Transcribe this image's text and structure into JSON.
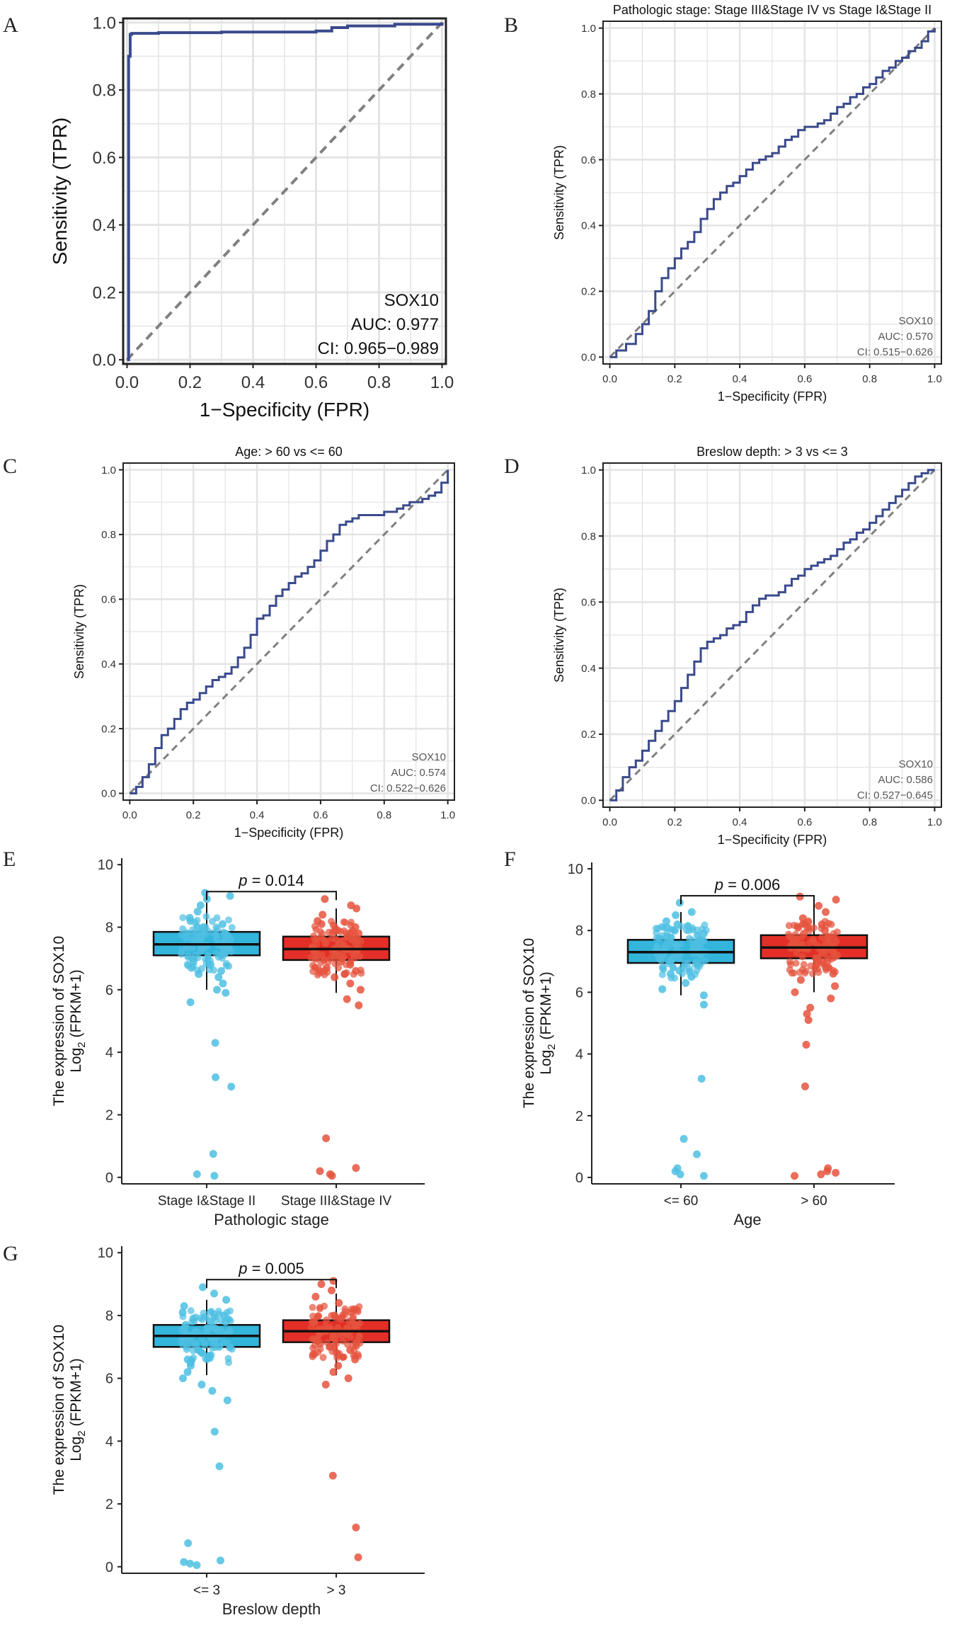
{
  "figure": {
    "title": "SOX10 ROC and expression panels"
  },
  "colors": {
    "roc_line": "#3a4a8c",
    "diagonal": "#808080",
    "grid": "#e4e4e4",
    "blue_box": "#33b5dc",
    "blue_point": "#4dbfe2",
    "red_box": "#e32f27",
    "red_point": "#e5533d"
  },
  "chart_data": [
    {
      "panel": "A",
      "type": "line",
      "title": "",
      "xlabel": "1−Specificity (FPR)",
      "ylabel": "Sensitivity (TPR)",
      "xlim": [
        0,
        1
      ],
      "ylim": [
        0,
        1
      ],
      "xticks": [
        "0.0",
        "0.2",
        "0.4",
        "0.6",
        "0.8",
        "1.0"
      ],
      "yticks": [
        "0.0",
        "0.2",
        "0.4",
        "0.6",
        "0.8",
        "1.0"
      ],
      "grid": true,
      "annotation": [
        "SOX10",
        "AUC: 0.977",
        "CI: 0.965−0.989"
      ],
      "series": [
        {
          "name": "SOX10",
          "x": [
            0,
            0.005,
            0.01,
            0.015,
            0.1,
            0.3,
            0.6,
            0.65,
            0.7,
            0.85,
            1.0
          ],
          "y": [
            0,
            0.9,
            0.965,
            0.968,
            0.97,
            0.972,
            0.975,
            0.985,
            0.99,
            0.995,
            1.0
          ]
        }
      ]
    },
    {
      "panel": "B",
      "type": "line",
      "title": "Pathologic stage: Stage III&Stage IV vs Stage I&Stage II",
      "xlabel": "1−Specificity (FPR)",
      "ylabel": "Sensitivity (TPR)",
      "xlim": [
        0,
        1
      ],
      "ylim": [
        0,
        1
      ],
      "xticks": [
        "0.0",
        "0.2",
        "0.4",
        "0.6",
        "0.8",
        "1.0"
      ],
      "yticks": [
        "0.0",
        "0.2",
        "0.4",
        "0.6",
        "0.8",
        "1.0"
      ],
      "grid": true,
      "annotation": [
        "SOX10",
        "AUC: 0.570",
        "CI: 0.515−0.626"
      ],
      "series": [
        {
          "name": "SOX10",
          "x": [
            0,
            0.02,
            0.05,
            0.08,
            0.1,
            0.12,
            0.14,
            0.16,
            0.18,
            0.2,
            0.22,
            0.24,
            0.26,
            0.28,
            0.3,
            0.32,
            0.34,
            0.36,
            0.38,
            0.4,
            0.42,
            0.44,
            0.46,
            0.48,
            0.5,
            0.52,
            0.54,
            0.56,
            0.58,
            0.6,
            0.62,
            0.64,
            0.66,
            0.68,
            0.7,
            0.72,
            0.74,
            0.76,
            0.78,
            0.8,
            0.82,
            0.84,
            0.86,
            0.88,
            0.9,
            0.92,
            0.94,
            0.96,
            0.98,
            1.0
          ],
          "y": [
            0,
            0.02,
            0.04,
            0.07,
            0.1,
            0.14,
            0.2,
            0.24,
            0.27,
            0.3,
            0.33,
            0.35,
            0.38,
            0.42,
            0.45,
            0.48,
            0.5,
            0.52,
            0.53,
            0.55,
            0.57,
            0.59,
            0.6,
            0.61,
            0.62,
            0.64,
            0.66,
            0.67,
            0.69,
            0.7,
            0.7,
            0.71,
            0.72,
            0.74,
            0.76,
            0.77,
            0.79,
            0.8,
            0.82,
            0.83,
            0.85,
            0.87,
            0.88,
            0.9,
            0.91,
            0.93,
            0.94,
            0.96,
            0.99,
            1.0
          ]
        }
      ]
    },
    {
      "panel": "C",
      "type": "line",
      "title": "Age: > 60 vs <= 60",
      "xlabel": "1−Specificity (FPR)",
      "ylabel": "Sensitivity (TPR)",
      "xlim": [
        0,
        1
      ],
      "ylim": [
        0,
        1
      ],
      "xticks": [
        "0.0",
        "0.2",
        "0.4",
        "0.6",
        "0.8",
        "1.0"
      ],
      "yticks": [
        "0.0",
        "0.2",
        "0.4",
        "0.6",
        "0.8",
        "1.0"
      ],
      "grid": true,
      "annotation": [
        "SOX10",
        "AUC: 0.574",
        "CI: 0.522−0.626"
      ],
      "series": [
        {
          "name": "SOX10",
          "x": [
            0,
            0.02,
            0.04,
            0.06,
            0.08,
            0.1,
            0.12,
            0.14,
            0.16,
            0.18,
            0.2,
            0.22,
            0.24,
            0.26,
            0.28,
            0.3,
            0.32,
            0.34,
            0.36,
            0.38,
            0.4,
            0.42,
            0.44,
            0.46,
            0.48,
            0.5,
            0.52,
            0.54,
            0.56,
            0.58,
            0.6,
            0.62,
            0.64,
            0.66,
            0.68,
            0.7,
            0.72,
            0.74,
            0.76,
            0.78,
            0.8,
            0.82,
            0.84,
            0.86,
            0.88,
            0.9,
            0.92,
            0.94,
            0.96,
            0.98,
            1.0
          ],
          "y": [
            0,
            0.02,
            0.05,
            0.09,
            0.14,
            0.18,
            0.2,
            0.23,
            0.26,
            0.28,
            0.29,
            0.31,
            0.33,
            0.35,
            0.36,
            0.37,
            0.39,
            0.42,
            0.45,
            0.49,
            0.54,
            0.55,
            0.58,
            0.61,
            0.63,
            0.65,
            0.67,
            0.68,
            0.7,
            0.72,
            0.75,
            0.78,
            0.8,
            0.83,
            0.84,
            0.85,
            0.86,
            0.86,
            0.86,
            0.86,
            0.87,
            0.87,
            0.88,
            0.89,
            0.9,
            0.9,
            0.91,
            0.92,
            0.93,
            0.96,
            1.0
          ]
        }
      ]
    },
    {
      "panel": "D",
      "type": "line",
      "title": "Breslow depth: > 3 vs <= 3",
      "xlabel": "1−Specificity (FPR)",
      "ylabel": "Sensitivity (TPR)",
      "xlim": [
        0,
        1
      ],
      "ylim": [
        0,
        1
      ],
      "xticks": [
        "0.0",
        "0.2",
        "0.4",
        "0.6",
        "0.8",
        "1.0"
      ],
      "yticks": [
        "0.0",
        "0.2",
        "0.4",
        "0.6",
        "0.8",
        "1.0"
      ],
      "grid": true,
      "annotation": [
        "SOX10",
        "AUC: 0.586",
        "CI: 0.527−0.645"
      ],
      "series": [
        {
          "name": "SOX10",
          "x": [
            0,
            0.02,
            0.04,
            0.06,
            0.08,
            0.1,
            0.12,
            0.14,
            0.16,
            0.18,
            0.2,
            0.22,
            0.24,
            0.26,
            0.28,
            0.3,
            0.32,
            0.34,
            0.36,
            0.38,
            0.4,
            0.42,
            0.44,
            0.46,
            0.48,
            0.5,
            0.52,
            0.54,
            0.56,
            0.58,
            0.6,
            0.62,
            0.64,
            0.66,
            0.68,
            0.7,
            0.72,
            0.74,
            0.76,
            0.78,
            0.8,
            0.82,
            0.84,
            0.86,
            0.88,
            0.9,
            0.92,
            0.94,
            0.96,
            0.98,
            1.0
          ],
          "y": [
            0,
            0.03,
            0.07,
            0.1,
            0.12,
            0.15,
            0.18,
            0.21,
            0.24,
            0.27,
            0.3,
            0.34,
            0.38,
            0.42,
            0.46,
            0.48,
            0.49,
            0.5,
            0.52,
            0.53,
            0.54,
            0.57,
            0.59,
            0.61,
            0.62,
            0.62,
            0.63,
            0.65,
            0.67,
            0.68,
            0.7,
            0.71,
            0.72,
            0.73,
            0.74,
            0.76,
            0.78,
            0.79,
            0.81,
            0.82,
            0.84,
            0.86,
            0.88,
            0.9,
            0.92,
            0.94,
            0.96,
            0.98,
            0.99,
            1.0,
            1.0
          ]
        }
      ]
    },
    {
      "panel": "E",
      "type": "box",
      "xlabel": "Pathologic stage",
      "ylabel_line1": "The expression of SOX10",
      "ylabel_line2": "Log",
      "ylabel_sub": "2",
      "ylabel_tail": " (FPKM+1)",
      "ylim": [
        0,
        10
      ],
      "yticks": [
        "0",
        "2",
        "4",
        "6",
        "8",
        "10"
      ],
      "pvalue_label": "p",
      "pvalue_text": " = 0.014",
      "groups": [
        {
          "name": "Stage I&Stage II",
          "color": "blue",
          "q1": 7.1,
          "median": 7.45,
          "q3": 7.85,
          "whisker_low": 6.0,
          "whisker_high": 8.8,
          "points": [
            0.05,
            0.1,
            0.75,
            2.9,
            3.2,
            4.3,
            5.6,
            5.9,
            6.0,
            6.2,
            6.4,
            6.5,
            6.6,
            6.7,
            6.8,
            6.9,
            7.0,
            7.1,
            7.2,
            7.3,
            7.35,
            7.4,
            7.45,
            7.5,
            7.55,
            7.6,
            7.7,
            7.8,
            7.9,
            8.0,
            8.1,
            8.2,
            8.3,
            8.5,
            8.7,
            8.9,
            9.0,
            9.1
          ]
        },
        {
          "name": "Stage III&Stage IV",
          "color": "red",
          "q1": 6.95,
          "median": 7.3,
          "q3": 7.7,
          "whisker_low": 5.9,
          "whisker_high": 8.6,
          "points": [
            0.05,
            0.1,
            0.2,
            0.3,
            1.25,
            5.5,
            5.7,
            6.0,
            6.2,
            6.4,
            6.5,
            6.6,
            6.7,
            6.8,
            6.9,
            7.0,
            7.1,
            7.2,
            7.25,
            7.3,
            7.35,
            7.4,
            7.5,
            7.6,
            7.7,
            7.8,
            7.9,
            8.0,
            8.1,
            8.2,
            8.4,
            8.6,
            8.7,
            8.9
          ]
        }
      ]
    },
    {
      "panel": "F",
      "type": "box",
      "xlabel": "Age",
      "ylabel_line1": "The expression of SOX10",
      "ylabel_line2": "Log",
      "ylabel_sub": "2",
      "ylabel_tail": " (FPKM+1)",
      "ylim": [
        0,
        10
      ],
      "yticks": [
        "0",
        "2",
        "4",
        "6",
        "8",
        "10"
      ],
      "pvalue_label": "p",
      "pvalue_text": " = 0.006",
      "groups": [
        {
          "name": "<= 60",
          "color": "blue",
          "q1": 6.95,
          "median": 7.3,
          "q3": 7.7,
          "whisker_low": 5.9,
          "whisker_high": 8.6,
          "points": [
            0.05,
            0.1,
            0.2,
            0.3,
            0.75,
            1.25,
            3.2,
            5.6,
            5.9,
            6.1,
            6.3,
            6.5,
            6.6,
            6.7,
            6.8,
            6.9,
            7.0,
            7.1,
            7.2,
            7.3,
            7.35,
            7.4,
            7.5,
            7.6,
            7.7,
            7.8,
            7.9,
            8.0,
            8.1,
            8.2,
            8.3,
            8.5,
            8.6,
            8.9
          ]
        },
        {
          "name": "> 60",
          "color": "red",
          "q1": 7.1,
          "median": 7.45,
          "q3": 7.85,
          "whisker_low": 6.0,
          "whisker_high": 8.9,
          "points": [
            0.05,
            0.1,
            0.15,
            0.2,
            0.3,
            2.95,
            4.3,
            5.1,
            5.3,
            5.5,
            5.8,
            6.0,
            6.2,
            6.4,
            6.6,
            6.8,
            6.9,
            7.0,
            7.1,
            7.2,
            7.3,
            7.4,
            7.45,
            7.5,
            7.6,
            7.7,
            7.8,
            7.9,
            8.0,
            8.1,
            8.2,
            8.4,
            8.6,
            8.8,
            9.0,
            9.1
          ]
        }
      ]
    },
    {
      "panel": "G",
      "type": "box",
      "xlabel": "Breslow depth",
      "ylabel_line1": "The expression of SOX10",
      "ylabel_line2": "Log",
      "ylabel_sub": "2",
      "ylabel_tail": " (FPKM+1)",
      "ylim": [
        0,
        10
      ],
      "yticks": [
        "0",
        "2",
        "4",
        "6",
        "8",
        "10"
      ],
      "pvalue_label": "p",
      "pvalue_text": " = 0.005",
      "groups": [
        {
          "name": "<= 3",
          "color": "blue",
          "q1": 7.0,
          "median": 7.35,
          "q3": 7.7,
          "whisker_low": 6.1,
          "whisker_high": 8.5,
          "points": [
            0.05,
            0.1,
            0.15,
            0.2,
            0.75,
            3.2,
            4.3,
            5.3,
            5.6,
            5.8,
            6.0,
            6.2,
            6.4,
            6.5,
            6.6,
            6.7,
            6.8,
            6.9,
            7.0,
            7.1,
            7.2,
            7.3,
            7.35,
            7.4,
            7.5,
            7.6,
            7.7,
            7.8,
            7.9,
            8.0,
            8.1,
            8.3,
            8.5,
            8.7,
            8.9
          ]
        },
        {
          "name": "> 3",
          "color": "red",
          "q1": 7.15,
          "median": 7.5,
          "q3": 7.85,
          "whisker_low": 6.1,
          "whisker_high": 8.7,
          "points": [
            0.3,
            1.25,
            2.9,
            5.8,
            6.0,
            6.2,
            6.4,
            6.6,
            6.8,
            6.9,
            7.0,
            7.1,
            7.2,
            7.3,
            7.4,
            7.5,
            7.6,
            7.7,
            7.8,
            7.9,
            8.0,
            8.1,
            8.2,
            8.4,
            8.6,
            8.8,
            9.0,
            9.1
          ]
        }
      ]
    }
  ]
}
